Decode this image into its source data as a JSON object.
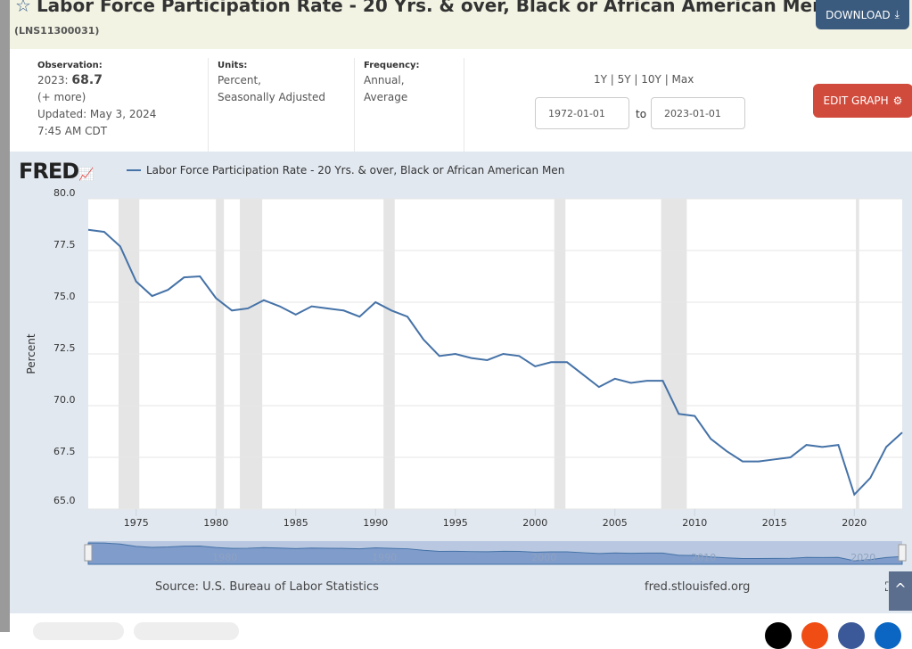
{
  "header": {
    "title": "Labor Force Participation Rate - 20 Yrs. & over, Black or African American Men",
    "series_id": "(LNS11300031)",
    "download_label": "DOWNLOAD"
  },
  "info": {
    "observation_label": "Observation:",
    "obs_year": "2023:",
    "obs_value": "68.7",
    "more": "(+ more)",
    "updated": "Updated: May 3, 2024",
    "time": "7:45 AM CDT",
    "units_label": "Units:",
    "units_1": "Percent,",
    "units_2": "Seasonally Adjusted",
    "freq_label": "Frequency:",
    "freq_1": "Annual,",
    "freq_2": "Average"
  },
  "controls": {
    "ranges": "1Y | 5Y | 10Y | Max",
    "start": "1972-01-01",
    "to": "to",
    "end": "2023-01-01",
    "edit_label": "EDIT GRAPH"
  },
  "footer": {
    "source": "Source: U.S. Bureau of Labor Statistics",
    "url": "fred.stlouisfed.org"
  },
  "logo": "FRED",
  "colors": {
    "line": "#4572a7",
    "recession": "#e5e5e5"
  },
  "chart_data": {
    "type": "line",
    "title": "Labor Force Participation Rate - 20 Yrs. & over, Black or African American Men",
    "ylabel": "Percent",
    "xlabel": "",
    "ylim": [
      65,
      80
    ],
    "xlim": [
      1972,
      2023
    ],
    "yticks": [
      "65.0",
      "67.5",
      "70.0",
      "72.5",
      "75.0",
      "77.5",
      "80.0"
    ],
    "xticks": [
      "1975",
      "1980",
      "1985",
      "1990",
      "1995",
      "2000",
      "2005",
      "2010",
      "2015",
      "2020"
    ],
    "navigator_ticks": [
      "1980",
      "1990",
      "2000",
      "2010",
      "2020"
    ],
    "x": [
      1972,
      1973,
      1974,
      1975,
      1976,
      1977,
      1978,
      1979,
      1980,
      1981,
      1982,
      1983,
      1984,
      1985,
      1986,
      1987,
      1988,
      1989,
      1990,
      1991,
      1992,
      1993,
      1994,
      1995,
      1996,
      1997,
      1998,
      1999,
      2000,
      2001,
      2002,
      2003,
      2004,
      2005,
      2006,
      2007,
      2008,
      2009,
      2010,
      2011,
      2012,
      2013,
      2014,
      2015,
      2016,
      2017,
      2018,
      2019,
      2020,
      2021,
      2022,
      2023
    ],
    "series": [
      {
        "name": "Labor Force Participation Rate - 20 Yrs. & over, Black or African American Men",
        "values": [
          78.5,
          78.4,
          77.7,
          76.0,
          75.3,
          75.6,
          76.2,
          76.25,
          75.2,
          74.6,
          74.7,
          75.1,
          74.8,
          74.4,
          74.8,
          74.7,
          74.6,
          74.3,
          75.0,
          74.6,
          74.3,
          73.2,
          72.4,
          72.5,
          72.3,
          72.2,
          72.5,
          72.4,
          71.9,
          72.1,
          72.1,
          71.5,
          70.9,
          71.3,
          71.1,
          71.2,
          71.2,
          69.6,
          69.5,
          68.4,
          67.8,
          67.3,
          67.3,
          67.4,
          67.5,
          68.1,
          68.0,
          68.1,
          65.7,
          66.5,
          68.0,
          68.7
        ]
      }
    ],
    "recessions": [
      [
        1973.9,
        1975.2
      ],
      [
        1980.0,
        1980.5
      ],
      [
        1981.5,
        1982.9
      ],
      [
        1990.5,
        1991.2
      ],
      [
        2001.2,
        2001.9
      ],
      [
        2007.9,
        2009.5
      ],
      [
        2020.1,
        2020.3
      ]
    ],
    "grid": true,
    "legend": "top-left"
  }
}
